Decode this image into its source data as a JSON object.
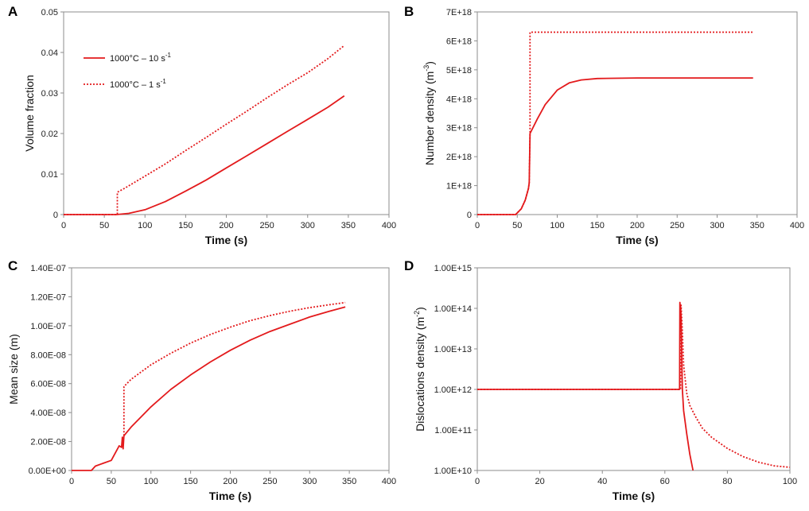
{
  "colors": {
    "series": "#e31a1c",
    "axis": "#8c8c8c",
    "text": "#111111"
  },
  "chart_data": [
    {
      "panel": "A",
      "type": "line",
      "xlabel": "Time  (s)",
      "ylabel": "Volume fraction",
      "xlim": [
        0,
        400
      ],
      "ylim": [
        0,
        0.05
      ],
      "x_ticks": [
        "0",
        "50",
        "100",
        "150",
        "200",
        "250",
        "300",
        "350",
        "400"
      ],
      "y_ticks": [
        "0",
        "0.01",
        "0.02",
        "0.03",
        "0.04",
        "0.05"
      ],
      "legend": [
        {
          "label": "1000°C – 10 s",
          "sup": "-1",
          "style": "solid"
        },
        {
          "label": "1000°C – 1 s",
          "sup": "-1",
          "style": "dotted"
        }
      ],
      "series": [
        {
          "name": "1000°C – 10 s-1",
          "style": "solid",
          "points": [
            [
              0,
              0
            ],
            [
              65,
              0
            ],
            [
              80,
              0.0003
            ],
            [
              100,
              0.0012
            ],
            [
              125,
              0.0032
            ],
            [
              150,
              0.0058
            ],
            [
              175,
              0.0085
            ],
            [
              200,
              0.0115
            ],
            [
              225,
              0.0145
            ],
            [
              250,
              0.0175
            ],
            [
              275,
              0.0205
            ],
            [
              300,
              0.0235
            ],
            [
              325,
              0.0265
            ],
            [
              345,
              0.0293
            ]
          ]
        },
        {
          "name": "1000°C – 1 s-1",
          "style": "dotted",
          "points": [
            [
              0,
              0
            ],
            [
              66,
              0
            ],
            [
              66,
              0.0055
            ],
            [
              75,
              0.0065
            ],
            [
              100,
              0.0095
            ],
            [
              125,
              0.0125
            ],
            [
              150,
              0.0158
            ],
            [
              175,
              0.019
            ],
            [
              200,
              0.0223
            ],
            [
              225,
              0.0255
            ],
            [
              250,
              0.0288
            ],
            [
              275,
              0.032
            ],
            [
              300,
              0.035
            ],
            [
              325,
              0.0385
            ],
            [
              345,
              0.0417
            ]
          ]
        }
      ]
    },
    {
      "panel": "B",
      "type": "line",
      "xlabel": "Time  (s)",
      "ylabel": "Number density (m",
      "ylabel_sup": "-3",
      "ylabel_end": ")",
      "xlim": [
        0,
        400
      ],
      "ylim": [
        0,
        7e+18
      ],
      "x_ticks": [
        "0",
        "50",
        "100",
        "150",
        "200",
        "250",
        "300",
        "350",
        "400"
      ],
      "y_ticks": [
        "0",
        "1E+18",
        "2E+18",
        "3E+18",
        "4E+18",
        "5E+18",
        "6E+18",
        "7E+18"
      ],
      "series": [
        {
          "name": "1000°C – 10 s-1",
          "style": "solid",
          "points": [
            [
              0,
              0
            ],
            [
              48,
              0
            ],
            [
              55,
              2e+17
            ],
            [
              60,
              5e+17
            ],
            [
              64,
              9e+17
            ],
            [
              65,
              1.1e+18
            ],
            [
              66,
              2.8e+18
            ],
            [
              75,
              3.3e+18
            ],
            [
              85,
              3.8e+18
            ],
            [
              100,
              4.3e+18
            ],
            [
              115,
              4.55e+18
            ],
            [
              130,
              4.65e+18
            ],
            [
              150,
              4.7e+18
            ],
            [
              200,
              4.72e+18
            ],
            [
              345,
              4.72e+18
            ]
          ]
        },
        {
          "name": "1000°C – 1 s-1",
          "style": "dotted",
          "points": [
            [
              0,
              0
            ],
            [
              48,
              0
            ],
            [
              55,
              2e+17
            ],
            [
              60,
              5e+17
            ],
            [
              64,
              9e+17
            ],
            [
              65,
              1.1e+18
            ],
            [
              66,
              2.8e+18
            ],
            [
              66,
              6.3e+18
            ],
            [
              345,
              6.3e+18
            ]
          ]
        }
      ]
    },
    {
      "panel": "C",
      "type": "line",
      "xlabel": "Time  (s)",
      "ylabel": "Mean size (m)",
      "xlim": [
        0,
        400
      ],
      "ylim": [
        0,
        1.4e-07
      ],
      "x_ticks": [
        "0",
        "50",
        "100",
        "150",
        "200",
        "250",
        "300",
        "350",
        "400"
      ],
      "y_ticks": [
        "0.00E+00",
        "2.00E-08",
        "4.00E-08",
        "6.00E-08",
        "8.00E-08",
        "1.00E-07",
        "1.20E-07",
        "1.40E-07"
      ],
      "series": [
        {
          "name": "1000°C – 10 s-1",
          "style": "solid",
          "points": [
            [
              0,
              0
            ],
            [
              25,
              0
            ],
            [
              30,
              3e-09
            ],
            [
              40,
              5e-09
            ],
            [
              50,
              7e-09
            ],
            [
              55,
              1.2e-08
            ],
            [
              60,
              1.7e-08
            ],
            [
              63,
              1.6e-08
            ],
            [
              64,
              2.3e-08
            ],
            [
              65,
              1.5e-08
            ],
            [
              66,
              2.4e-08
            ],
            [
              75,
              3e-08
            ],
            [
              100,
              4.4e-08
            ],
            [
              125,
              5.6e-08
            ],
            [
              150,
              6.6e-08
            ],
            [
              175,
              7.5e-08
            ],
            [
              200,
              8.3e-08
            ],
            [
              225,
              9e-08
            ],
            [
              250,
              9.6e-08
            ],
            [
              275,
              1.01e-07
            ],
            [
              300,
              1.06e-07
            ],
            [
              325,
              1.1e-07
            ],
            [
              345,
              1.13e-07
            ]
          ]
        },
        {
          "name": "1000°C – 1 s-1",
          "style": "dotted",
          "points": [
            [
              66,
              2.4e-08
            ],
            [
              66,
              5.8e-08
            ],
            [
              75,
              6.3e-08
            ],
            [
              100,
              7.3e-08
            ],
            [
              125,
              8.1e-08
            ],
            [
              150,
              8.8e-08
            ],
            [
              175,
              9.4e-08
            ],
            [
              200,
              9.9e-08
            ],
            [
              225,
              1.035e-07
            ],
            [
              250,
              1.07e-07
            ],
            [
              275,
              1.1e-07
            ],
            [
              300,
              1.125e-07
            ],
            [
              325,
              1.145e-07
            ],
            [
              345,
              1.16e-07
            ]
          ]
        }
      ]
    },
    {
      "panel": "D",
      "type": "line",
      "yscale": "log",
      "xlabel": "Time  (s)",
      "ylabel": "Dislocations density (m",
      "ylabel_sup": "-2",
      "ylabel_end": ")",
      "xlim": [
        0,
        100
      ],
      "ylim": [
        10000000000.0,
        1000000000000000.0
      ],
      "x_ticks": [
        "0",
        "20",
        "40",
        "60",
        "80",
        "100"
      ],
      "y_ticks": [
        "1.00E+10",
        "1.00E+11",
        "1.00E+12",
        "1.00E+13",
        "1.00E+14",
        "1.00E+15"
      ],
      "series": [
        {
          "name": "1000°C – 10 s-1",
          "style": "solid",
          "points": [
            [
              0,
              1000000000000.0
            ],
            [
              64.7,
              1000000000000.0
            ],
            [
              64.8,
              140000000000000.0
            ],
            [
              65.2,
              60000000000000.0
            ],
            [
              65.6,
              1000000000000.0
            ],
            [
              66,
              300000000000.0
            ],
            [
              67,
              80000000000.0
            ],
            [
              68,
              25000000000.0
            ],
            [
              69,
              10000000000.0
            ]
          ]
        },
        {
          "name": "1000°C – 1 s-1",
          "style": "dotted",
          "points": [
            [
              0,
              1000000000000.0
            ],
            [
              65,
              1000000000000.0
            ],
            [
              65.2,
              120000000000000.0
            ],
            [
              65.6,
              28000000000000.0
            ],
            [
              66,
              4000000000000.0
            ],
            [
              67,
              800000000000.0
            ],
            [
              68,
              400000000000.0
            ],
            [
              70,
              200000000000.0
            ],
            [
              72,
              110000000000.0
            ],
            [
              75,
              65000000000.0
            ],
            [
              80,
              35000000000.0
            ],
            [
              85,
              22000000000.0
            ],
            [
              90,
              16000000000.0
            ],
            [
              95,
              13000000000.0
            ],
            [
              100,
              12000000000.0
            ]
          ]
        }
      ]
    }
  ]
}
